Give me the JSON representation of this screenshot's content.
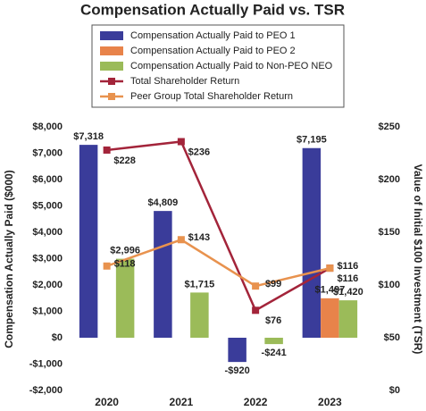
{
  "chart_data": {
    "type": "bar-line",
    "title": "Compensation Actually Paid vs. TSR",
    "ylabel": "Compensation Actually Paid ($000)",
    "y2label": "Value of Initial $100 Investment (TSR)",
    "categories": [
      "2020",
      "2021",
      "2022",
      "2023"
    ],
    "series": [
      {
        "name": "Compensation Actually Paid to PEO 1",
        "kind": "bar",
        "color": "#3a3c9a",
        "values": [
          7318,
          4809,
          -920,
          7195
        ],
        "value_labels": [
          "$7,318",
          "$4,809",
          "-$920",
          "$7,195"
        ]
      },
      {
        "name": "Compensation Actually Paid to PEO 2",
        "kind": "bar",
        "color": "#e8834a",
        "values": [
          null,
          null,
          null,
          1497
        ],
        "value_labels": [
          null,
          null,
          null,
          "$1,497"
        ]
      },
      {
        "name": "Compensation Actually Paid to Non-PEO NEO",
        "kind": "bar",
        "color": "#9bbb59",
        "values": [
          2996,
          1715,
          -241,
          1420
        ],
        "value_labels": [
          "$2,996",
          "$1,715",
          "-$241",
          "$1,420"
        ]
      },
      {
        "name": "Total Shareholder Return",
        "kind": "line",
        "axis": "y2",
        "color": "#a3243a",
        "values": [
          228,
          236,
          76,
          116
        ],
        "value_labels": [
          "$228",
          "$236",
          "$76",
          "$116"
        ]
      },
      {
        "name": "Peer Group Total Shareholder Return",
        "kind": "line",
        "axis": "y2",
        "color": "#e8924e",
        "values": [
          118,
          143,
          99,
          116
        ],
        "value_labels": [
          "$118",
          "$143",
          "$99",
          "$116"
        ]
      }
    ],
    "ylim": [
      -2000,
      8000
    ],
    "yticks": [
      {
        "value": -2000,
        "label": "-$2,000"
      },
      {
        "value": -1000,
        "label": "-$1,000"
      },
      {
        "value": 0,
        "label": "$0"
      },
      {
        "value": 1000,
        "label": "$1,000"
      },
      {
        "value": 2000,
        "label": "$2,000"
      },
      {
        "value": 3000,
        "label": "$3,000"
      },
      {
        "value": 4000,
        "label": "$4,000"
      },
      {
        "value": 5000,
        "label": "$5,000"
      },
      {
        "value": 6000,
        "label": "$6,000"
      },
      {
        "value": 7000,
        "label": "$7,000"
      },
      {
        "value": 8000,
        "label": "$8,000"
      }
    ],
    "y2lim": [
      0,
      250
    ],
    "y2ticks": [
      {
        "value": 0,
        "label": "$0"
      },
      {
        "value": 50,
        "label": "$50"
      },
      {
        "value": 100,
        "label": "$100"
      },
      {
        "value": 150,
        "label": "$150"
      },
      {
        "value": 200,
        "label": "$200"
      },
      {
        "value": 250,
        "label": "$250"
      }
    ],
    "grid": false
  }
}
